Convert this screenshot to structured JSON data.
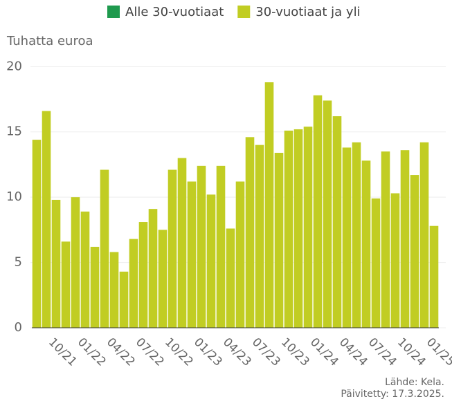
{
  "chart_data": {
    "type": "stacked-bar",
    "y_axis_title": "Tuhatta euroa",
    "categories": [
      null,
      null,
      "10/21",
      null,
      null,
      "01/22",
      null,
      null,
      "04/22",
      null,
      null,
      "07/22",
      null,
      null,
      "10/22",
      null,
      null,
      "01/23",
      null,
      null,
      "04/23",
      null,
      null,
      "07/23",
      null,
      null,
      "10/23",
      null,
      null,
      "01/24",
      null,
      null,
      "04/24",
      null,
      null,
      "07/24",
      null,
      null,
      "10/24",
      null,
      null,
      "01/25"
    ],
    "series": [
      {
        "name": "Alle 30-vuotiaat",
        "color": "#1f9a4e",
        "values": [
          0,
          0,
          0,
          0,
          0,
          0,
          0,
          0,
          0,
          0,
          0,
          0,
          0,
          0,
          0,
          0,
          0,
          0,
          0,
          0,
          0,
          0,
          0,
          0,
          0,
          0,
          0,
          0,
          0,
          0,
          0,
          0,
          0,
          0,
          0,
          0,
          0,
          0,
          0,
          0,
          0,
          0
        ]
      },
      {
        "name": "30-vuotiaat ja yli",
        "color": "#c1cd23",
        "values": [
          14.4,
          16.6,
          9.8,
          6.6,
          10.0,
          8.9,
          6.2,
          12.1,
          5.8,
          4.3,
          6.8,
          8.1,
          9.1,
          7.5,
          12.1,
          13.0,
          11.2,
          12.4,
          10.2,
          12.4,
          7.6,
          11.2,
          14.6,
          14.0,
          18.8,
          13.4,
          15.1,
          15.2,
          15.4,
          17.8,
          17.4,
          16.2,
          13.8,
          14.2,
          12.8,
          9.9,
          13.5,
          10.3,
          13.6,
          11.7,
          14.2,
          7.8
        ]
      }
    ],
    "ylim": [
      0,
      21.5
    ],
    "yticks": [
      0,
      5,
      10,
      15,
      20
    ],
    "grid": true,
    "source": "Lähde: Kela.",
    "updated": "Päivitetty: 17.3.2025."
  }
}
